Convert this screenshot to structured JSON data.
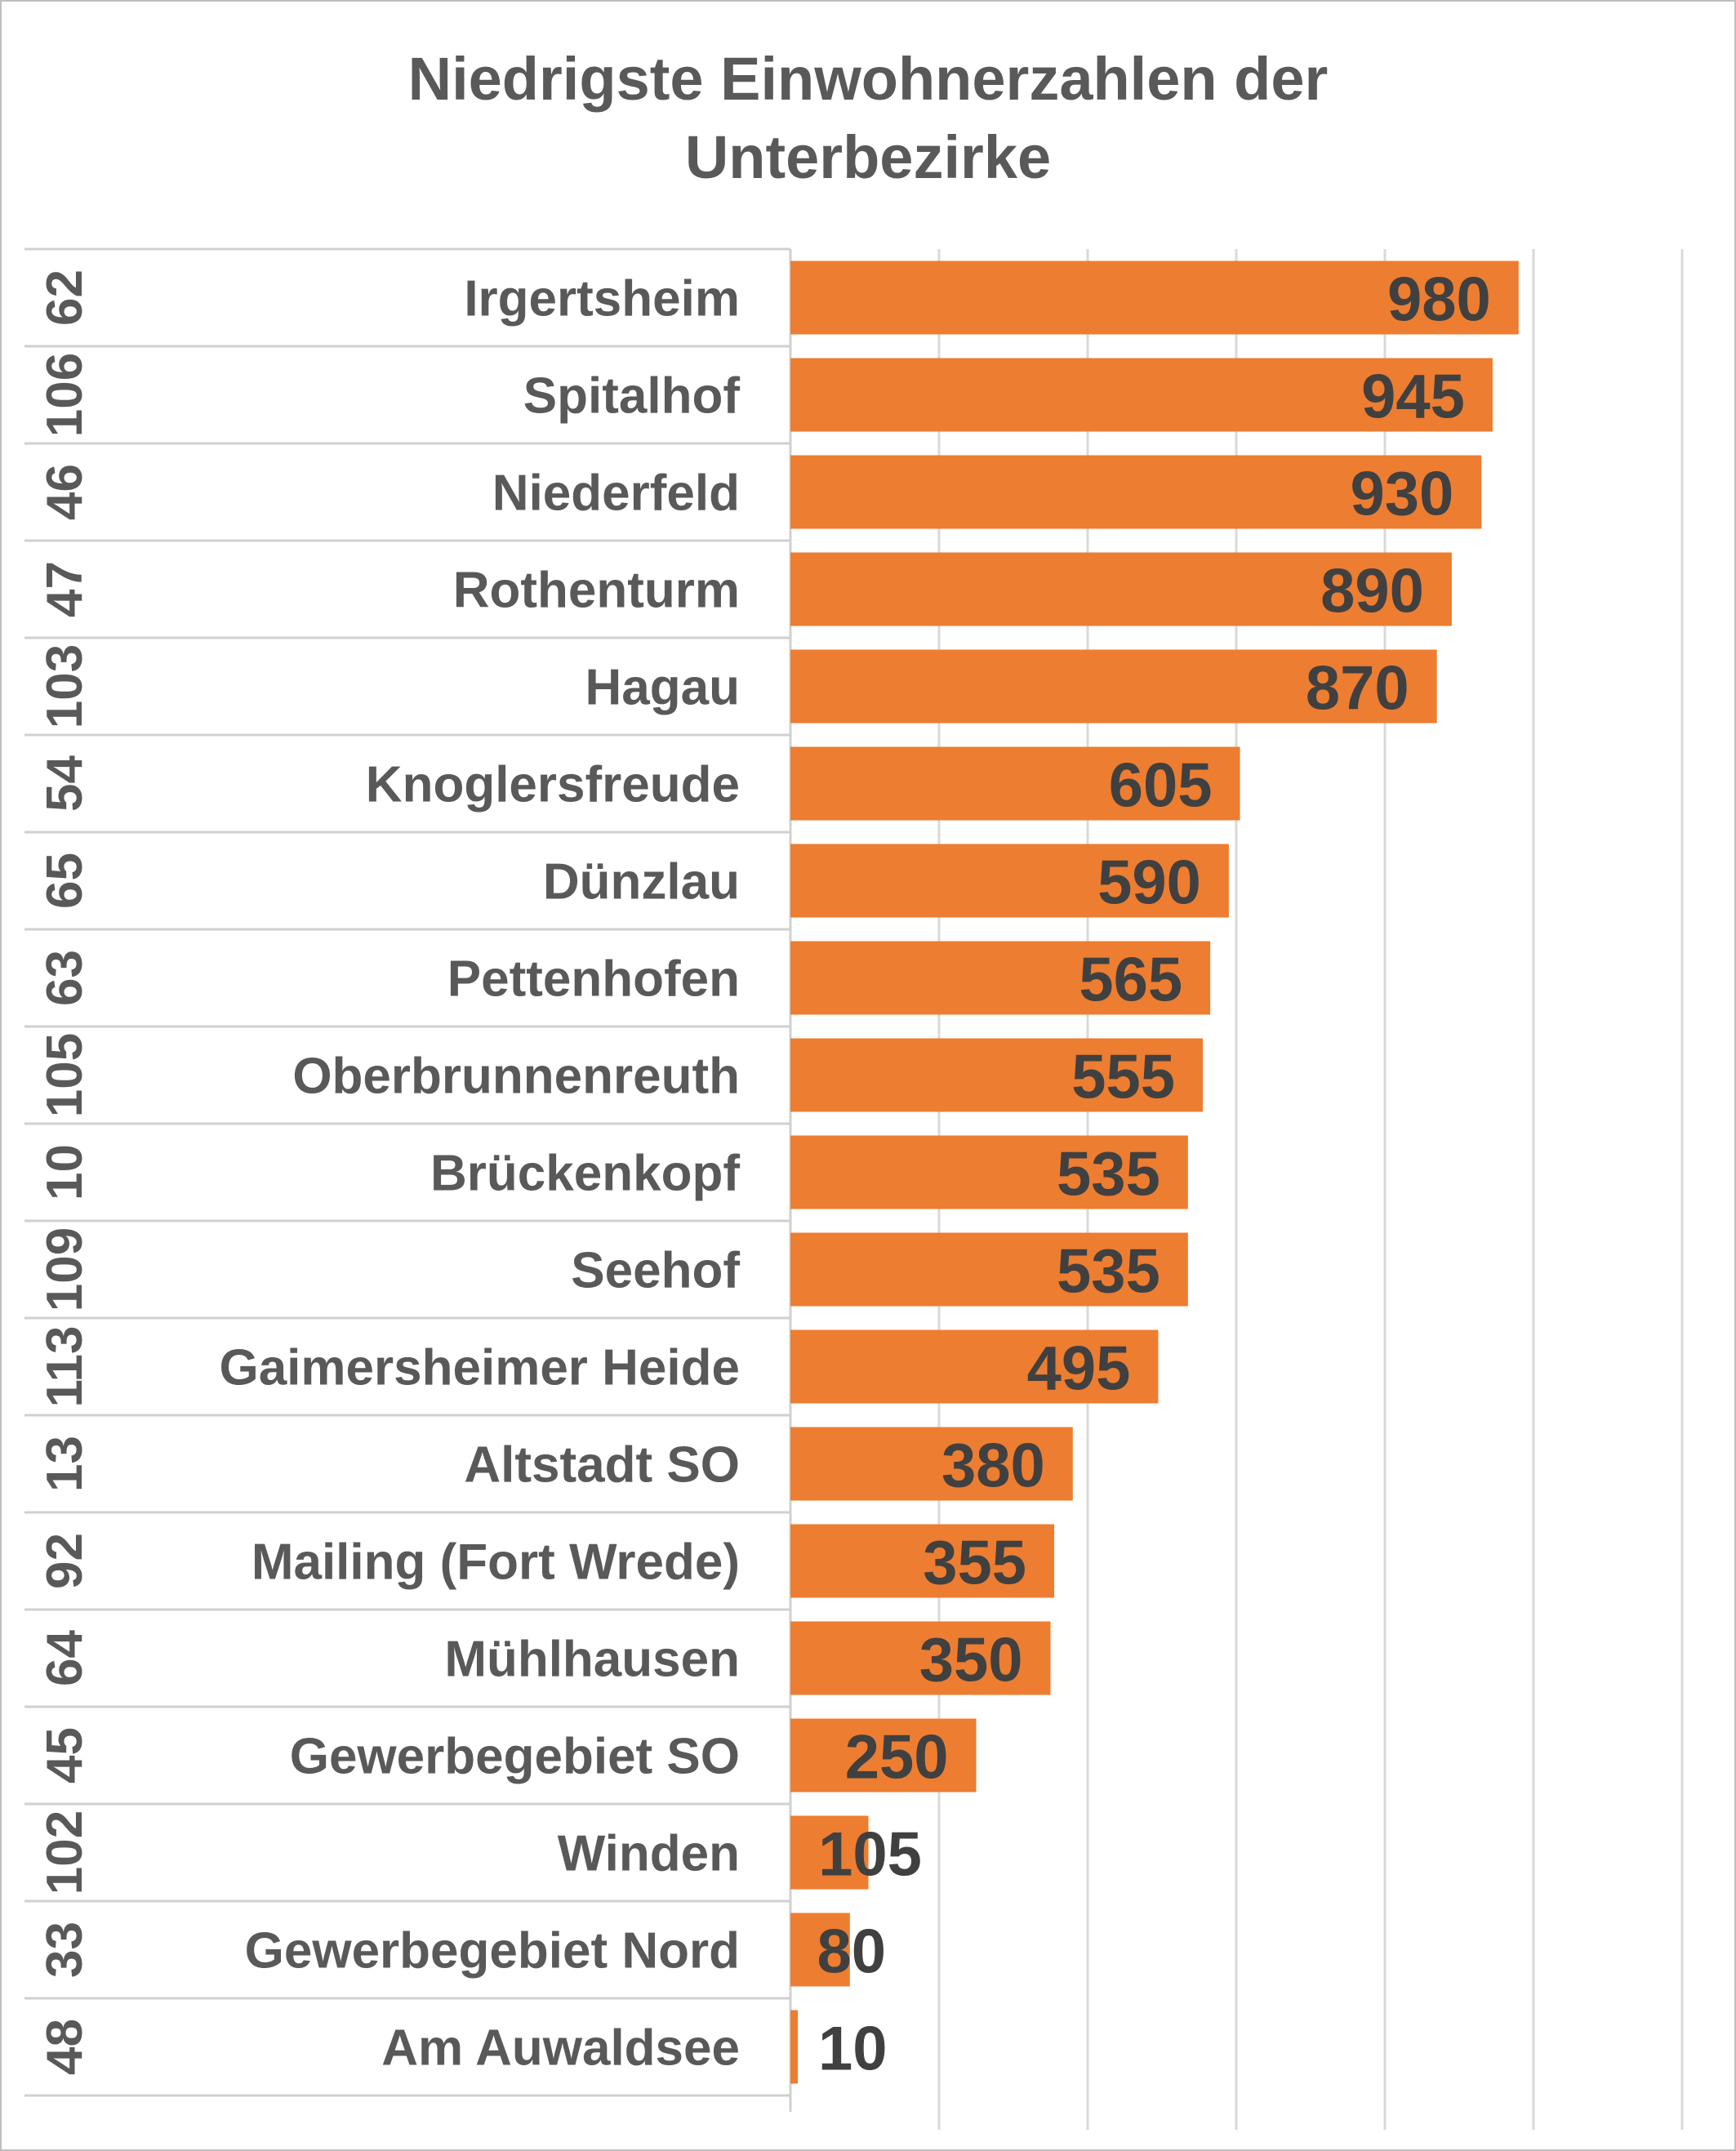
{
  "chart_data": {
    "type": "bar",
    "orientation": "horizontal",
    "title_lines": [
      "Niedrigste Einwohnerzahlen der",
      "Unterbezirke"
    ],
    "bar_color": "#ed7d31",
    "gridline_color": "#d9d9d9",
    "xlim": [
      0,
      1200
    ],
    "grid": true,
    "data_labels": true,
    "rows": [
      {
        "code": "62",
        "category": "Irgertsheim",
        "value": 980
      },
      {
        "code": "106",
        "category": "Spitalhof",
        "value": 945
      },
      {
        "code": "46",
        "category": "Niederfeld",
        "value": 930
      },
      {
        "code": "47",
        "category": "Rothenturm",
        "value": 890
      },
      {
        "code": "103",
        "category": "Hagau",
        "value": 870
      },
      {
        "code": "54",
        "category": "Knoglersfreude",
        "value": 605
      },
      {
        "code": "65",
        "category": "Dünzlau",
        "value": 590
      },
      {
        "code": "63",
        "category": "Pettenhofen",
        "value": 565
      },
      {
        "code": "105",
        "category": "Oberbrunnenreuth",
        "value": 555
      },
      {
        "code": "10",
        "category": "Brückenkopf",
        "value": 535
      },
      {
        "code": "109",
        "category": "Seehof",
        "value": 535
      },
      {
        "code": "113",
        "category": "Gaimersheimer Heide",
        "value": 495
      },
      {
        "code": "13",
        "category": "Altstadt SO",
        "value": 380
      },
      {
        "code": "92",
        "category": "Mailing (Fort Wrede)",
        "value": 355
      },
      {
        "code": "64",
        "category": "Mühlhausen",
        "value": 350
      },
      {
        "code": "45",
        "category": "Gewerbegebiet SO",
        "value": 250
      },
      {
        "code": "102",
        "category": "Winden",
        "value": 105
      },
      {
        "code": "33",
        "category": "Gewerbegebiet Nord",
        "value": 80
      },
      {
        "code": "48",
        "category": "Am Auwaldsee",
        "value": 10
      }
    ]
  }
}
